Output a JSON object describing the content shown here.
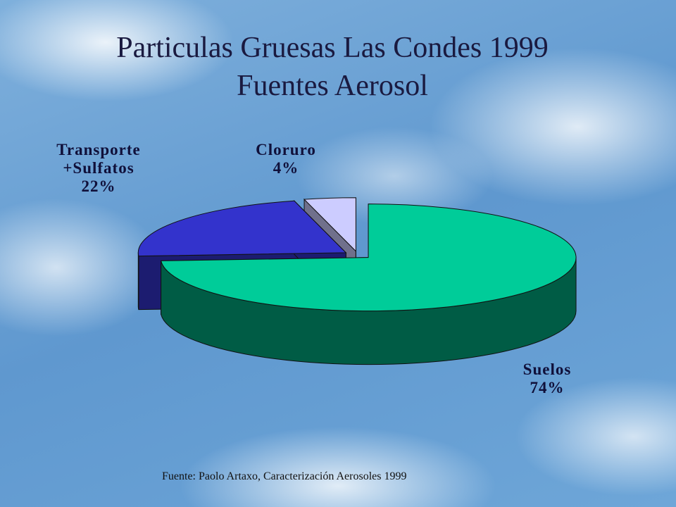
{
  "chart_data": {
    "type": "pie3d",
    "title": "Particulas Gruesas Las Condes 1999",
    "subtitle": "Fuentes Aerosol",
    "categories": [
      "Transporte +Sulfatos",
      "Cloruro",
      "Suelos"
    ],
    "values": [
      22,
      4,
      74
    ],
    "value_labels": [
      "22%",
      "4%",
      "74%"
    ],
    "colors": [
      "#3333cc",
      "#ccccff",
      "#00cc99"
    ],
    "source": "Fuente: Paolo Artaxo, Caracterización Aerosoles 1999"
  }
}
